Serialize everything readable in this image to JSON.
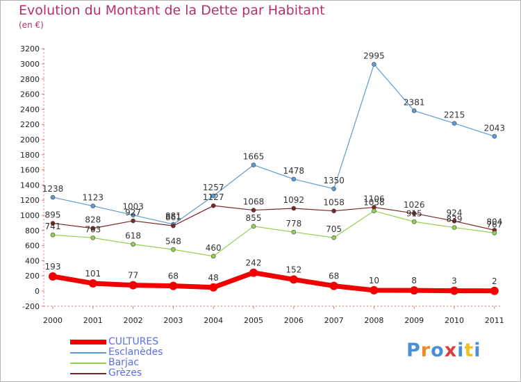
{
  "title": "Evolution du Montant de la Dette par Habitant",
  "unit": "(en €)",
  "logo": {
    "text": "Proxiti",
    "colors": [
      "#4a8fd6",
      "#ef8a2a",
      "#4a8fd6",
      "#e03c3c",
      "#4a8fd6",
      "#f0c020",
      "#4a8fd6"
    ]
  },
  "chart_data": {
    "type": "line",
    "title": "Evolution du Montant de la Dette par Habitant",
    "ylabel": "(en €)",
    "xlabel": "",
    "categories": [
      "2000",
      "2001",
      "2002",
      "2003",
      "2004",
      "2005",
      "2006",
      "2007",
      "2008",
      "2009",
      "2010",
      "2011"
    ],
    "ylim": [
      -200,
      3200
    ],
    "yticks": [
      -200,
      0,
      200,
      400,
      600,
      800,
      1000,
      1200,
      1400,
      1600,
      1800,
      2000,
      2200,
      2400,
      2600,
      2800,
      3000,
      3200
    ],
    "grid": false,
    "legend": "bottom-left",
    "series": [
      {
        "name": "Esclanèdes",
        "color": "#5b9bd5",
        "values": [
          1238,
          1123,
          1003,
          881,
          1257,
          1665,
          1478,
          1350,
          2995,
          2381,
          2215,
          2043
        ]
      },
      {
        "name": "Grèzes",
        "color": "#7a2626",
        "values": [
          895,
          828,
          927,
          861,
          1127,
          1068,
          1092,
          1058,
          1106,
          1026,
          924,
          804
        ]
      },
      {
        "name": "Barjac",
        "color": "#92d050",
        "values": [
          741,
          703,
          618,
          548,
          460,
          855,
          778,
          705,
          1058,
          915,
          839,
          767
        ]
      },
      {
        "name": "CULTURES",
        "color": "#f20000",
        "values": [
          193,
          101,
          77,
          68,
          48,
          242,
          152,
          68,
          10,
          8,
          3,
          2
        ]
      }
    ],
    "legend_order": [
      "CULTURES",
      "Esclanèdes",
      "Barjac",
      "Grèzes"
    ]
  }
}
